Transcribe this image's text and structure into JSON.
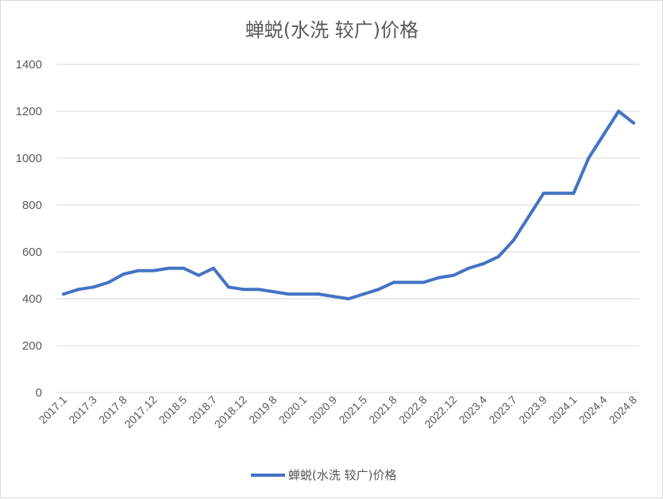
{
  "chart_data": {
    "type": "line",
    "title": "蝉蜕(水洗 较广)价格",
    "xlabel": "",
    "ylabel": "",
    "ylim": [
      0,
      1400
    ],
    "yticks": [
      0,
      200,
      400,
      600,
      800,
      1000,
      1200,
      1400
    ],
    "grid": true,
    "legend_position": "bottom",
    "x_tick_labels": [
      "2017.1",
      "2017.3",
      "2017.8",
      "2017.12",
      "2018.5",
      "2018.7",
      "2018.12",
      "2019.8",
      "2020.1",
      "2020.9",
      "2021.5",
      "2021.8",
      "2022.8",
      "2022.12",
      "2023.4",
      "2023.7",
      "2023.9",
      "2024.1",
      "2024.4",
      "2024.8"
    ],
    "colors": {
      "line": "#4472c4",
      "grid": "#d9d9d9",
      "text": "#595959"
    },
    "series": [
      {
        "name": "蝉蜕(水洗 较广)价格",
        "values": [
          420,
          440,
          450,
          470,
          505,
          520,
          520,
          530,
          530,
          500,
          530,
          450,
          440,
          440,
          430,
          420,
          420,
          420,
          410,
          400,
          420,
          440,
          470,
          470,
          470,
          490,
          500,
          530,
          550,
          580,
          650,
          750,
          850,
          850,
          850,
          1000,
          1100,
          1200,
          1150
        ]
      }
    ]
  }
}
